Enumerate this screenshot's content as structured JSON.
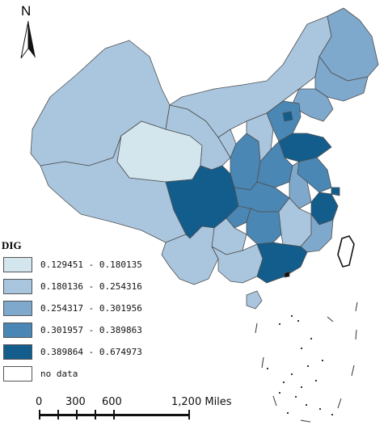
{
  "north": {
    "label": "N"
  },
  "legend": {
    "title": "DIG",
    "items": [
      {
        "label": "0.129451 - 0.180135",
        "color": "#d3e6ee"
      },
      {
        "label": "0.180136 - 0.254316",
        "color": "#a9c6de"
      },
      {
        "label": "0.254317 - 0.301956",
        "color": "#7ea8cc"
      },
      {
        "label": "0.301957 - 0.389863",
        "color": "#4a87b4"
      },
      {
        "label": "0.389864 - 0.674973",
        "color": "#135d8d"
      },
      {
        "label": "no data",
        "color": "#ffffff"
      }
    ]
  },
  "scale": {
    "labels": [
      "0",
      "300",
      "600",
      "1,200 Miles"
    ]
  },
  "map": {
    "boundary_color": "#5a5a5a"
  }
}
